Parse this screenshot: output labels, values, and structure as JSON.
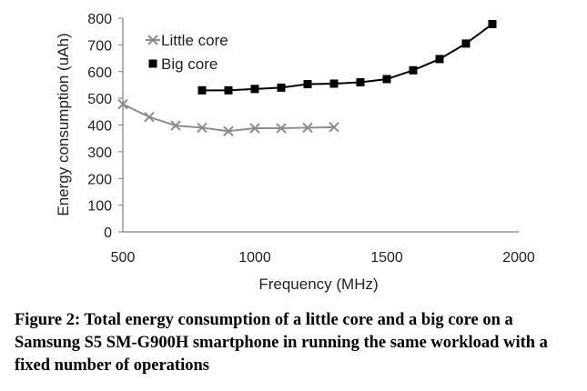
{
  "chart_data": {
    "type": "line",
    "xlabel": "Frequency (MHz)",
    "ylabel": "Energy consumption (uAh)",
    "xlim": [
      500,
      2000
    ],
    "ylim": [
      0,
      800
    ],
    "x_ticks": [
      500,
      1000,
      1500,
      2000
    ],
    "y_ticks": [
      0,
      100,
      200,
      300,
      400,
      500,
      600,
      700,
      800
    ],
    "grid": false,
    "legend_position": "top-left",
    "series": [
      {
        "name": "Little core",
        "marker": "x",
        "color": "#8c8c8c",
        "x": [
          500,
          600,
          700,
          800,
          900,
          1000,
          1100,
          1200,
          1300
        ],
        "y": [
          478,
          430,
          398,
          390,
          377,
          388,
          388,
          390,
          392
        ]
      },
      {
        "name": "Big core",
        "marker": "square",
        "color": "#000000",
        "x": [
          800,
          900,
          1000,
          1100,
          1200,
          1300,
          1400,
          1500,
          1600,
          1700,
          1800,
          1900
        ],
        "y": [
          530,
          530,
          535,
          540,
          553,
          555,
          560,
          572,
          605,
          647,
          705,
          778
        ]
      }
    ]
  },
  "caption": "Figure 2: Total energy consumption of a little core and a big core on a Samsung S5 SM-G900H smartphone in running the same workload with a fixed number of operations"
}
